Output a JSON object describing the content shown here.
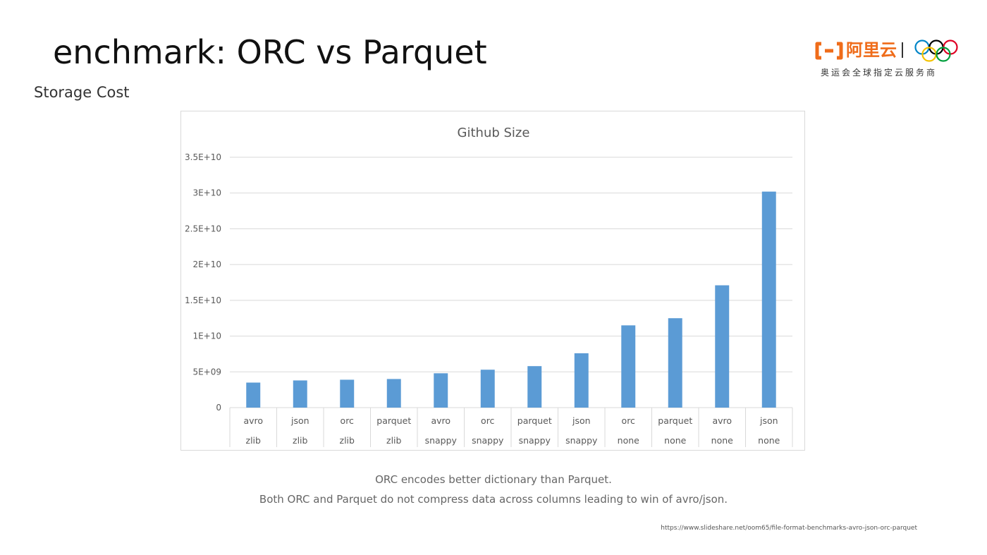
{
  "slide": {
    "title": "enchmark: ORC vs Parquet",
    "subtitle": "Storage Cost",
    "notes": [
      "ORC encodes better dictionary than Parquet.",
      "Both ORC and Parquet do not compress data across columns leading to win of avro/json."
    ],
    "source_url": "https://www.slideshare.net/oom65/file-format-benchmarks-avro-json-orc-parquet"
  },
  "logo": {
    "brand": "阿里云",
    "tagline": "奥运会全球指定云服务商",
    "brand_color": "#ef6c1a",
    "rings_colors": [
      "#0085c7",
      "#f4c300",
      "#000000",
      "#009f3d",
      "#df0024"
    ]
  },
  "colors": {
    "bar": "#5b9bd5",
    "grid": "#d9d9d9",
    "axis_text": "#595959"
  },
  "chart_data": {
    "type": "bar",
    "title": "Github Size",
    "xlabel": "",
    "ylabel": "",
    "ylim": [
      0,
      35000000000
    ],
    "grid": true,
    "legend": "none",
    "y_ticks": [
      {
        "value": 0,
        "label": "0"
      },
      {
        "value": 5000000000,
        "label": "5E+09"
      },
      {
        "value": 10000000000,
        "label": "1E+10"
      },
      {
        "value": 15000000000,
        "label": "1.5E+10"
      },
      {
        "value": 20000000000,
        "label": "2E+10"
      },
      {
        "value": 25000000000,
        "label": "2.5E+10"
      },
      {
        "value": 30000000000,
        "label": "3E+10"
      },
      {
        "value": 35000000000,
        "label": "3.5E+10"
      }
    ],
    "categories": [
      {
        "format": "avro",
        "compression": "zlib"
      },
      {
        "format": "json",
        "compression": "zlib"
      },
      {
        "format": "orc",
        "compression": "zlib"
      },
      {
        "format": "parquet",
        "compression": "zlib"
      },
      {
        "format": "avro",
        "compression": "snappy"
      },
      {
        "format": "orc",
        "compression": "snappy"
      },
      {
        "format": "parquet",
        "compression": "snappy"
      },
      {
        "format": "json",
        "compression": "snappy"
      },
      {
        "format": "orc",
        "compression": "none"
      },
      {
        "format": "parquet",
        "compression": "none"
      },
      {
        "format": "avro",
        "compression": "none"
      },
      {
        "format": "json",
        "compression": "none"
      }
    ],
    "values": [
      3500000000,
      3800000000,
      3900000000,
      4000000000,
      4800000000,
      5300000000,
      5800000000,
      7600000000,
      11500000000,
      12500000000,
      17100000000,
      30200000000
    ]
  }
}
